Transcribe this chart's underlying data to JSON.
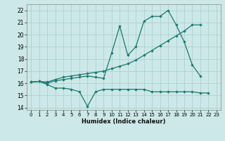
{
  "xlabel": "Humidex (Indice chaleur)",
  "bg_color": "#cce8e8",
  "grid_color": "#aacccc",
  "line_color": "#1a7a6e",
  "xlim": [
    -0.5,
    23.5
  ],
  "ylim": [
    13.8,
    22.5
  ],
  "yticks": [
    14,
    15,
    16,
    17,
    18,
    19,
    20,
    21,
    22
  ],
  "xticks": [
    0,
    1,
    2,
    3,
    4,
    5,
    6,
    7,
    8,
    9,
    10,
    11,
    12,
    13,
    14,
    15,
    16,
    17,
    18,
    19,
    20,
    21,
    22,
    23
  ],
  "line1_x": [
    0,
    1,
    2,
    3,
    4,
    5,
    6,
    7,
    8,
    9,
    10,
    11,
    12,
    13,
    14,
    15,
    16,
    17,
    18,
    19,
    20,
    21,
    22
  ],
  "line1_y": [
    16.1,
    16.15,
    15.9,
    15.6,
    15.6,
    15.5,
    15.3,
    14.1,
    15.3,
    15.5,
    15.5,
    15.5,
    15.5,
    15.5,
    15.5,
    15.3,
    15.3,
    15.3,
    15.3,
    15.3,
    15.3,
    15.2,
    15.2
  ],
  "line2_x": [
    0,
    1,
    2,
    3,
    4,
    5,
    6,
    7,
    8,
    9,
    10,
    11,
    12,
    13,
    14,
    15,
    16,
    17,
    18,
    19,
    20,
    21,
    22,
    23
  ],
  "line2_y": [
    16.1,
    16.15,
    16.0,
    16.2,
    16.3,
    16.4,
    16.5,
    16.6,
    16.5,
    16.4,
    18.5,
    20.7,
    18.3,
    19.0,
    21.1,
    21.5,
    21.5,
    22.0,
    20.8,
    19.4,
    17.5,
    16.6,
    null,
    null
  ],
  "line3_x": [
    0,
    1,
    2,
    3,
    4,
    5,
    6,
    7,
    8,
    9,
    10,
    11,
    12,
    13,
    14,
    15,
    16,
    17,
    18,
    19,
    20,
    21
  ],
  "line3_y": [
    16.1,
    16.15,
    16.1,
    16.3,
    16.5,
    16.6,
    16.7,
    16.8,
    16.9,
    17.0,
    17.2,
    17.4,
    17.6,
    17.9,
    18.3,
    18.7,
    19.1,
    19.5,
    19.9,
    20.3,
    20.8,
    20.8
  ]
}
